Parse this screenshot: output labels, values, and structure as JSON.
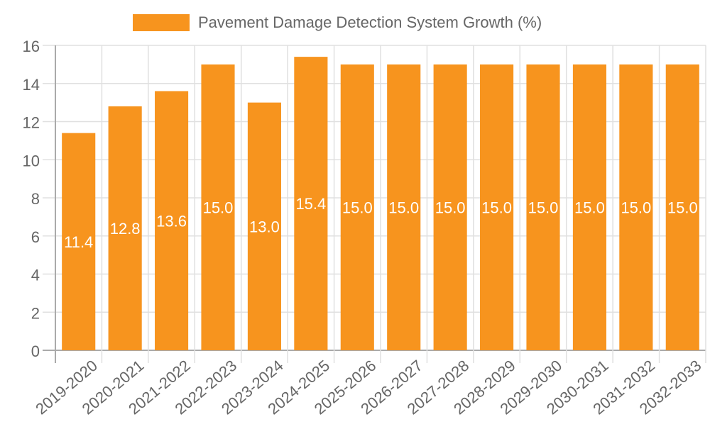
{
  "chart_data": {
    "type": "bar",
    "title": "",
    "xlabel": "",
    "ylabel": "",
    "ylim": [
      0,
      16
    ],
    "yticks": [
      0,
      2,
      4,
      6,
      8,
      10,
      12,
      14,
      16
    ],
    "grid": true,
    "legend_position": "top",
    "categories": [
      "2019-2020",
      "2020-2021",
      "2021-2022",
      "2022-2023",
      "2023-2024",
      "2024-2025",
      "2025-2026",
      "2026-2027",
      "2027-2028",
      "2028-2029",
      "2029-2030",
      "2030-2031",
      "2031-2032",
      "2032-2033"
    ],
    "series": [
      {
        "name": "Pavement Damage Detection System Growth (%)",
        "color": "#f7941e",
        "values": [
          11.4,
          12.8,
          13.6,
          15.0,
          13.0,
          15.4,
          15.0,
          15.0,
          15.0,
          15.0,
          15.0,
          15.0,
          15.0,
          15.0
        ],
        "labels": [
          "11.4",
          "12.8",
          "13.6",
          "15.0",
          "13.0",
          "15.4",
          "15.0",
          "15.0",
          "15.0",
          "15.0",
          "15.0",
          "15.0",
          "15.0",
          "15.0"
        ]
      }
    ]
  },
  "legend": {
    "label": "Pavement Damage Detection System Growth (%)",
    "color": "#f7941e"
  }
}
